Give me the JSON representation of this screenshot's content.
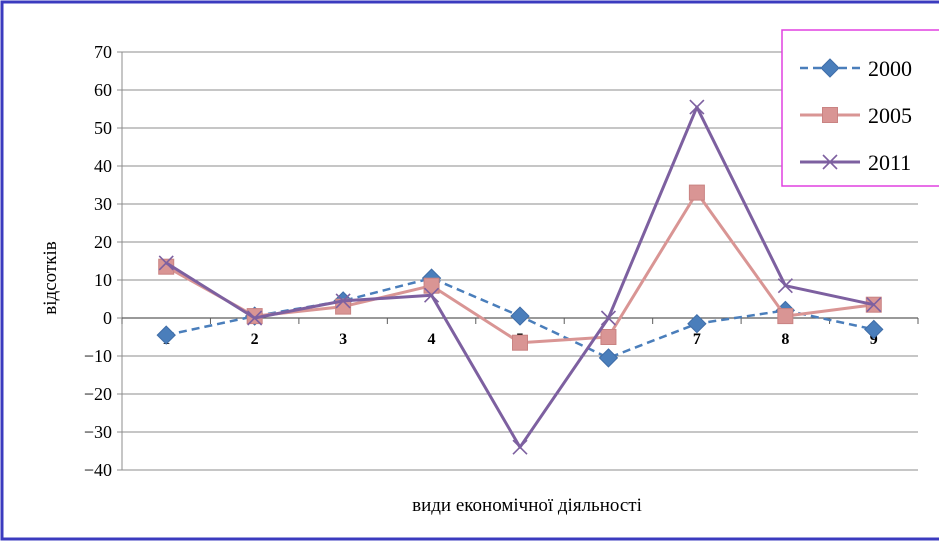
{
  "chart_data": {
    "type": "line",
    "categories": [
      "1",
      "2",
      "3",
      "4",
      "5",
      "6",
      "7",
      "8",
      "9"
    ],
    "series": [
      {
        "name": "2000",
        "values": [
          -4.5,
          0.5,
          4.5,
          10.5,
          0.5,
          -10.5,
          -1.5,
          2,
          -3
        ],
        "color": "#4a7ebb",
        "dash": true,
        "marker": "diamond"
      },
      {
        "name": "2005",
        "values": [
          13.5,
          0.5,
          3,
          8.5,
          -6.5,
          -5,
          33,
          0.5,
          3.5
        ],
        "color": "#d99594",
        "dash": false,
        "marker": "square"
      },
      {
        "name": "2011",
        "values": [
          14.5,
          0,
          4.5,
          6,
          -34,
          0,
          55.5,
          8.5,
          3.5
        ],
        "color": "#7d60a0",
        "dash": false,
        "marker": "x"
      }
    ],
    "ylim": [
      -40,
      70
    ],
    "yticks": [
      "70",
      "60",
      "50",
      "40",
      "30",
      "20",
      "10",
      "0",
      "−10",
      "−20",
      "−30",
      "−40"
    ],
    "ylabel": "відсотків",
    "xlabel": "види економічної діяльності",
    "grid": true,
    "legend_position": "top-right",
    "frame_color": "#3b3bbf",
    "legend_border_color": "#e040e0"
  }
}
